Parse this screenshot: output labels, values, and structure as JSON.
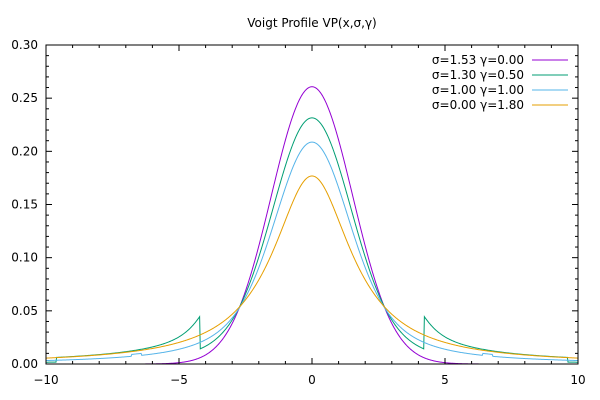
{
  "chart_data": {
    "type": "line",
    "title": "Voigt Profile VP(x,σ,γ)",
    "xlabel": "",
    "ylabel": "",
    "xlim": [
      -10,
      10
    ],
    "ylim": [
      0,
      0.3
    ],
    "grid": false,
    "legend_position": "top-right",
    "x_ticks": [
      "−10",
      "−5",
      "0",
      "5",
      "10"
    ],
    "y_ticks": [
      "0.00",
      "0.05",
      "0.10",
      "0.15",
      "0.20",
      "0.25",
      "0.30"
    ],
    "series": [
      {
        "name": "σ=1.53 γ=0.00",
        "sigma": 1.53,
        "gamma": 0.0,
        "color": "#9400d3"
      },
      {
        "name": "σ=1.30 γ=0.50",
        "sigma": 1.3,
        "gamma": 0.5,
        "color": "#009e73"
      },
      {
        "name": "σ=1.00 γ=1.00",
        "sigma": 1.0,
        "gamma": 1.0,
        "color": "#56b4e9"
      },
      {
        "name": "σ=0.00 γ=1.80",
        "sigma": 0.0,
        "gamma": 1.8,
        "color": "#e69f00"
      }
    ]
  }
}
